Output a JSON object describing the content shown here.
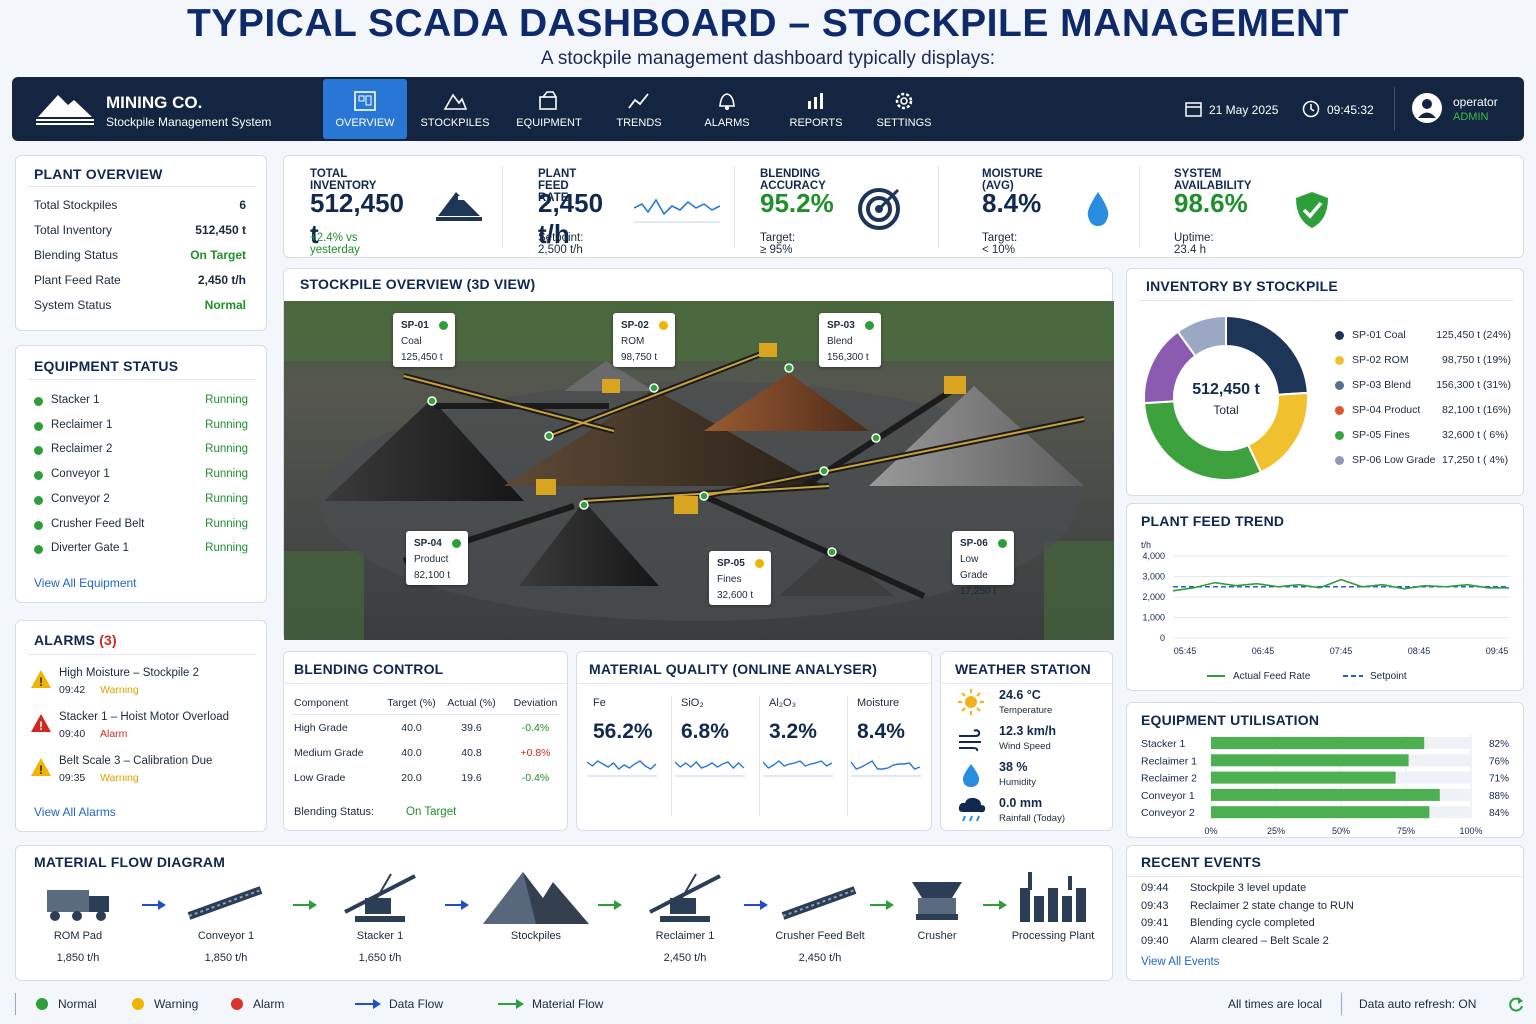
{
  "title": "TYPICAL SCADA DASHBOARD – STOCKPILE MANAGEMENT",
  "subtitle": "A stockpile management dashboard typically displays:",
  "header": {
    "brand": "MINING CO.",
    "brand_sub": "Stockpile Management System",
    "nav": [
      "OVERVIEW",
      "STOCKPILES",
      "EQUIPMENT",
      "TRENDS",
      "ALARMS",
      "REPORTS",
      "SETTINGS"
    ],
    "date": "21 May 2025",
    "time": "09:45:32",
    "user": "operator",
    "role": "ADMIN"
  },
  "plant_overview": {
    "title": "PLANT OVERVIEW",
    "rows": [
      {
        "label": "Total Stockpiles",
        "value": "6"
      },
      {
        "label": "Total Inventory",
        "value": "512,450 t"
      },
      {
        "label": "Blending Status",
        "value": "On Target"
      },
      {
        "label": "Plant Feed Rate",
        "value": "2,450 t/h"
      },
      {
        "label": "System Status",
        "value": "Normal"
      }
    ]
  },
  "kpis": [
    {
      "label": "TOTAL INVENTORY",
      "value": "512,450 t",
      "sub": "+2.4% vs yesterday"
    },
    {
      "label": "PLANT FEED RATE",
      "value": "2,450 t/h",
      "sub": "Setpoint: 2,500 t/h"
    },
    {
      "label": "BLENDING ACCURACY",
      "value": "95.2%",
      "sub": "Target: ≥ 95%"
    },
    {
      "label": "MOISTURE (AVG)",
      "value": "8.4%",
      "sub": "Target: < 10%"
    },
    {
      "label": "SYSTEM AVAILABILITY",
      "value": "98.6%",
      "sub": "Uptime: 23.4 h"
    }
  ],
  "equipment_status": {
    "title": "EQUIPMENT STATUS",
    "items": [
      {
        "name": "Stacker 1",
        "state": "Running"
      },
      {
        "name": "Reclaimer 1",
        "state": "Running"
      },
      {
        "name": "Reclaimer 2",
        "state": "Running"
      },
      {
        "name": "Conveyor 1",
        "state": "Running"
      },
      {
        "name": "Conveyor 2",
        "state": "Running"
      },
      {
        "name": "Crusher Feed Belt",
        "state": "Running"
      },
      {
        "name": "Diverter Gate 1",
        "state": "Running"
      }
    ],
    "link": "View All Equipment"
  },
  "alarms": {
    "title": "ALARMS",
    "count": "(3)",
    "items": [
      {
        "text": "High Moisture – Stockpile 2",
        "time": "09:42",
        "level": "Warning"
      },
      {
        "text": "Stacker 1 – Hoist Motor Overload",
        "time": "09:40",
        "level": "Alarm"
      },
      {
        "text": "Belt Scale 3 – Calibration Due",
        "time": "09:35",
        "level": "Warning"
      }
    ],
    "link": "View All Alarms"
  },
  "stockpile_view": {
    "title": "STOCKPILE OVERVIEW (3D VIEW)",
    "tags": [
      {
        "id": "SP-01",
        "type": "Coal",
        "qty": "125,450 t",
        "status": "green"
      },
      {
        "id": "SP-02",
        "type": "ROM",
        "qty": "98,750 t",
        "status": "amber"
      },
      {
        "id": "SP-03",
        "type": "Blend",
        "qty": "156,300 t",
        "status": "green"
      },
      {
        "id": "SP-04",
        "type": "Product",
        "qty": "82,100 t",
        "status": "green"
      },
      {
        "id": "SP-05",
        "type": "Fines",
        "qty": "32,600 t",
        "status": "amber"
      },
      {
        "id": "SP-06",
        "type": "Low Grade",
        "qty": "17,250 t",
        "status": "green"
      }
    ]
  },
  "inventory": {
    "title": "INVENTORY BY STOCKPILE",
    "total": "512,450 t",
    "total_label": "Total",
    "slices": [
      {
        "name": "SP-01 Coal",
        "qty": "125,450 t",
        "pct": "(24%)",
        "value": 24,
        "color": "#1d3557"
      },
      {
        "name": "SP-02 ROM",
        "qty": "98,750 t",
        "pct": "(19%)",
        "value": 19,
        "color": "#f0c02e"
      },
      {
        "name": "SP-03 Blend",
        "qty": "156,300 t",
        "pct": "(31%)",
        "value": 31,
        "color": "#3da23d"
      },
      {
        "name": "SP-04 Product",
        "qty": "82,100 t",
        "pct": "(16%)",
        "value": 16,
        "color": "#8a5bb0"
      },
      {
        "name": "SP-05 Fines",
        "qty": "32,600 t",
        "pct": "( 6%)",
        "value": 6,
        "color": "#9aa8c4"
      },
      {
        "name": "SP-06 Low Grade",
        "qty": "17,250 t",
        "pct": "( 4%)",
        "value": 4,
        "color": "#9aa8c4"
      }
    ],
    "legend_colors": [
      "#1d3557",
      "#f0c02e",
      "#5a6f8f",
      "#e0552b",
      "#3da23d",
      "#8e9ab5"
    ]
  },
  "feed_trend": {
    "title": "PLANT FEED TREND",
    "unit": "t/h",
    "yticks": [
      "4,000",
      "3,000",
      "2,000",
      "1,000",
      "0"
    ],
    "xticks": [
      "05:45",
      "06:45",
      "07:45",
      "08:45",
      "09:45"
    ],
    "legend_actual": "Actual Feed Rate",
    "legend_setpoint": "Setpoint"
  },
  "chart_data": {
    "type": "line",
    "title": "PLANT FEED TREND",
    "ylabel": "t/h",
    "ylim": [
      0,
      4000
    ],
    "x": [
      "05:45",
      "06:00",
      "06:15",
      "06:30",
      "06:45",
      "07:00",
      "07:15",
      "07:30",
      "07:45",
      "08:00",
      "08:15",
      "08:30",
      "08:45",
      "09:00",
      "09:15",
      "09:30",
      "09:45"
    ],
    "series": [
      {
        "name": "Actual Feed Rate",
        "values": [
          2300,
          2450,
          2700,
          2550,
          2650,
          2500,
          2600,
          2450,
          2850,
          2500,
          2600,
          2400,
          2550,
          2500,
          2600,
          2450,
          2450
        ]
      },
      {
        "name": "Setpoint",
        "values": [
          2500,
          2500,
          2500,
          2500,
          2500,
          2500,
          2500,
          2500,
          2500,
          2500,
          2500,
          2500,
          2500,
          2500,
          2500,
          2500,
          2500
        ]
      }
    ]
  },
  "blending": {
    "title": "BLENDING CONTROL",
    "headers": [
      "Component",
      "Target (%)",
      "Actual (%)",
      "Deviation"
    ],
    "rows": [
      [
        "High Grade",
        "40.0",
        "39.6",
        "-0.4%"
      ],
      [
        "Medium Grade",
        "40.0",
        "40.8",
        "+0.8%"
      ],
      [
        "Low Grade",
        "20.0",
        "19.6",
        "-0.4%"
      ]
    ],
    "status_label": "Blending Status:",
    "status": "On Target"
  },
  "quality": {
    "title": "MATERIAL QUALITY (ONLINE ANALYSER)",
    "items": [
      {
        "name": "Fe",
        "value": "56.2%"
      },
      {
        "name": "SiO₂",
        "value": "6.8%"
      },
      {
        "name": "Al₂O₃",
        "value": "3.2%"
      },
      {
        "name": "Moisture",
        "value": "8.4%"
      }
    ]
  },
  "weather": {
    "title": "WEATHER STATION",
    "items": [
      {
        "value": "24.6 °C",
        "label": "Temperature"
      },
      {
        "value": "12.3 km/h",
        "label": "Wind Speed"
      },
      {
        "value": "38 %",
        "label": "Humidity"
      },
      {
        "value": "0.0 mm",
        "label": "Rainfall (Today)"
      }
    ]
  },
  "utilisation": {
    "title": "EQUIPMENT UTILISATION",
    "items": [
      {
        "name": "Stacker 1",
        "value": 82,
        "label": "82%"
      },
      {
        "name": "Reclaimer 1",
        "value": 76,
        "label": "76%"
      },
      {
        "name": "Reclaimer 2",
        "value": 71,
        "label": "71%"
      },
      {
        "name": "Conveyor 1",
        "value": 88,
        "label": "88%"
      },
      {
        "name": "Conveyor 2",
        "value": 84,
        "label": "84%"
      }
    ],
    "xticks": [
      "0%",
      "25%",
      "50%",
      "75%",
      "100%"
    ]
  },
  "flow": {
    "title": "MATERIAL FLOW DIAGRAM",
    "items": [
      {
        "name": "ROM Pad",
        "rate": "1,850 t/h"
      },
      {
        "name": "Conveyor 1",
        "rate": "1,850 t/h"
      },
      {
        "name": "Stacker 1",
        "rate": "1,650 t/h"
      },
      {
        "name": "Stockpiles",
        "rate": ""
      },
      {
        "name": "Reclaimer 1",
        "rate": "2,450 t/h"
      },
      {
        "name": "Crusher Feed Belt",
        "rate": "2,450 t/h"
      },
      {
        "name": "Crusher",
        "rate": ""
      },
      {
        "name": "Processing Plant",
        "rate": ""
      }
    ]
  },
  "events": {
    "title": "RECENT EVENTS",
    "items": [
      {
        "time": "09:44",
        "text": "Stockpile 3 level update"
      },
      {
        "time": "09:43",
        "text": "Reclaimer 2 state change to RUN"
      },
      {
        "time": "09:41",
        "text": "Blending cycle completed"
      },
      {
        "time": "09:40",
        "text": "Alarm cleared – Belt Scale 2"
      }
    ],
    "link": "View All Events"
  },
  "footer": {
    "normal": "Normal",
    "warning": "Warning",
    "alarm": "Alarm",
    "data_flow": "Data Flow",
    "material_flow": "Material Flow",
    "times": "All times are local",
    "refresh": "Data auto refresh: ON"
  }
}
